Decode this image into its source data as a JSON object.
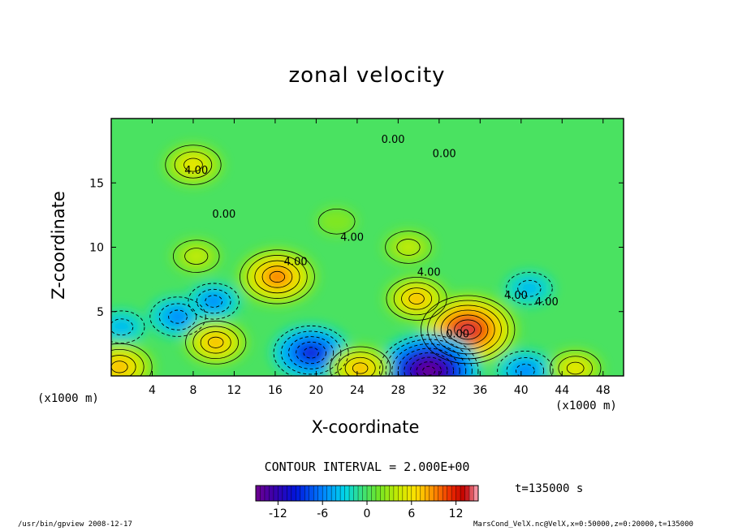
{
  "chart_data": {
    "type": "heatmap",
    "title": "zonal velocity",
    "xlabel": "X-coordinate",
    "ylabel": "Z-coordinate",
    "x_unit": "(x1000 m)",
    "z_unit": "(x1000 m)",
    "xlim": [
      0,
      50
    ],
    "ylim": [
      0,
      20
    ],
    "x_ticks": [
      4,
      8,
      12,
      16,
      20,
      24,
      28,
      32,
      36,
      40,
      44,
      48
    ],
    "y_ticks": [
      5,
      10,
      15
    ],
    "contour_interval": "CONTOUR INTERVAL = 2.000E+00",
    "time": "t=135000 s",
    "colorbar": {
      "ticks": [
        -12,
        -6,
        0,
        6,
        12
      ]
    },
    "contour_labels": [
      "0.00",
      "0.00",
      "4.00",
      "0.00",
      "4.00",
      "4.00",
      "4.00",
      "0.00",
      "4.00",
      "4.00"
    ],
    "features": [
      {
        "x": 16.2,
        "z": 7.7,
        "peak": 10
      },
      {
        "x": 34.8,
        "z": 3.6,
        "peak": 14
      },
      {
        "x": 31.0,
        "z": 0.4,
        "peak": -15
      },
      {
        "x": 19.5,
        "z": 1.8,
        "peak": -10
      },
      {
        "x": 6.5,
        "z": 4.6,
        "peak": -6
      },
      {
        "x": 10.0,
        "z": 5.8,
        "peak": -5
      },
      {
        "x": 40.8,
        "z": 6.8,
        "peak": -4
      },
      {
        "x": 40.4,
        "z": 0.4,
        "peak": -6
      },
      {
        "x": 29.8,
        "z": 6.0,
        "peak": 7
      },
      {
        "x": 8.0,
        "z": 16.4,
        "peak": 6
      },
      {
        "x": 1.0,
        "z": 3.8,
        "peak": -4
      },
      {
        "x": 0.8,
        "z": 0.7,
        "peak": 8
      },
      {
        "x": 10.2,
        "z": 2.6,
        "peak": 7
      },
      {
        "x": 24.3,
        "z": 0.6,
        "peak": 7
      },
      {
        "x": 45.3,
        "z": 0.6,
        "peak": 5
      },
      {
        "x": 8.3,
        "z": 9.3,
        "peak": 4
      },
      {
        "x": 29.0,
        "z": 10.0,
        "peak": 4
      },
      {
        "x": 22.0,
        "z": 12.0,
        "peak": 2
      }
    ]
  },
  "footer": {
    "left": "/usr/bin/gpview  2008-12-17",
    "right": "MarsCond_VelX.nc@VelX,x=0:50000,z=0:20000,t=135000"
  }
}
